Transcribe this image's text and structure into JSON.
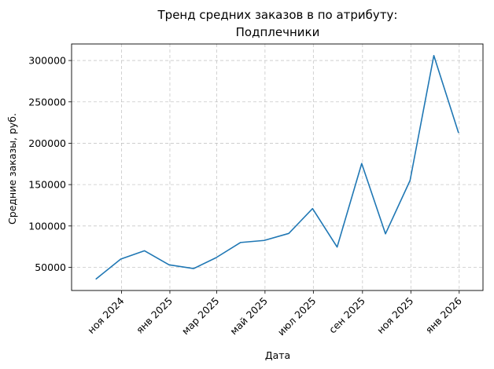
{
  "chart_data": {
    "type": "line",
    "title_lines": [
      "Тренд средних заказов в  по атрибуту:",
      "Подплечники"
    ],
    "xlabel": "Дата",
    "ylabel": "Средние заказы, руб.",
    "grid": true,
    "line_color": "#1f77b4",
    "x_tick_labels": [
      "ноя 2024",
      "янв 2025",
      "мар 2025",
      "май 2025",
      "июл 2025",
      "сен 2025",
      "ноя 2025",
      "янв 2026"
    ],
    "y_tick_labels": [
      "50000",
      "100000",
      "150000",
      "200000",
      "250000",
      "300000"
    ],
    "ylim": [
      22000,
      320000
    ],
    "series": [
      {
        "x": [
          "2024-09-30",
          "2024-10-31",
          "2024-11-30",
          "2024-12-31",
          "2025-01-31",
          "2025-02-28",
          "2025-03-31",
          "2025-04-30",
          "2025-05-31",
          "2025-06-30",
          "2025-07-31",
          "2025-08-31",
          "2025-09-30",
          "2025-10-31",
          "2025-11-30",
          "2025-12-31"
        ],
        "values": [
          36000,
          60000,
          70000,
          53000,
          48500,
          61500,
          80000,
          82500,
          91000,
          121000,
          74500,
          175500,
          90500,
          155000,
          306000,
          213000
        ]
      }
    ]
  }
}
